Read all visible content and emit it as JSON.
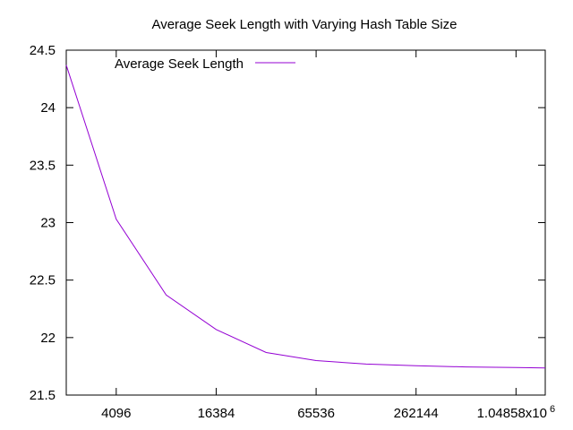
{
  "chart_data": {
    "type": "line",
    "title": "Average Seek Length with Varying Hash Table Size",
    "xlabel": "",
    "ylabel": "",
    "x_scale": "log2",
    "xlim": [
      2048,
      1572864
    ],
    "ylim": [
      21.5,
      24.5
    ],
    "x_ticks": [
      {
        "value": 4096,
        "label": "4096"
      },
      {
        "value": 16384,
        "label": "16384"
      },
      {
        "value": 65536,
        "label": "65536"
      },
      {
        "value": 262144,
        "label": "262144"
      },
      {
        "value": 1048576,
        "label": "1.04858x10",
        "exponent": "6"
      }
    ],
    "y_ticks": [
      {
        "value": 21.5,
        "label": "21.5"
      },
      {
        "value": 22,
        "label": "22"
      },
      {
        "value": 22.5,
        "label": "22.5"
      },
      {
        "value": 23,
        "label": "23"
      },
      {
        "value": 23.5,
        "label": "23.5"
      },
      {
        "value": 24,
        "label": "24"
      },
      {
        "value": 24.5,
        "label": "24.5"
      }
    ],
    "grid": false,
    "legend_position": "top-left",
    "series": [
      {
        "name": "Average Seek Length",
        "color": "#9400d3",
        "x": [
          2048,
          4096,
          8192,
          16384,
          32768,
          65536,
          131072,
          262144,
          524288,
          1048576,
          1572864
        ],
        "y": [
          24.37,
          23.03,
          22.37,
          22.07,
          21.87,
          21.8,
          21.77,
          21.755,
          21.745,
          21.74,
          21.735
        ]
      }
    ]
  }
}
